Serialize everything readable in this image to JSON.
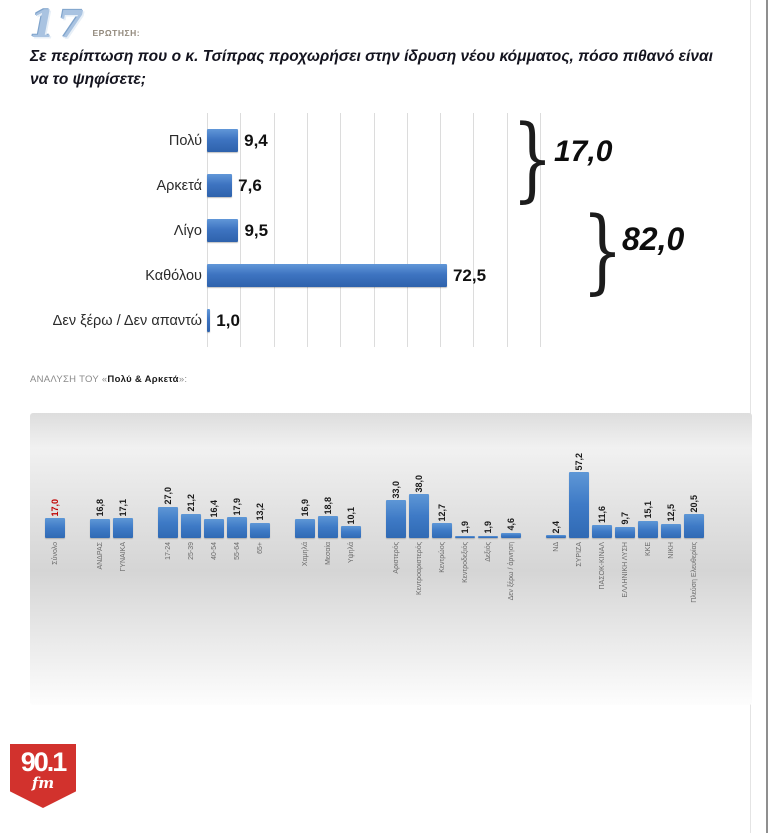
{
  "header": {
    "number": "17",
    "label": "ΕΡΩΤΗΣΗ:"
  },
  "question": "Σε περίπτωση που ο κ. Τσίπρας προχωρήσει στην ίδρυση νέου κόμματος, πόσο πιθανό είναι να το ψηφίσετε;",
  "analysis": {
    "prefix": "ΑΝΑΛΥΣΗ ΤΟΥ «",
    "highlight": "Πολύ & Αρκετά",
    "suffix": "»:"
  },
  "logo": {
    "frequency": "90.1",
    "band": "fm"
  },
  "colors": {
    "bar_blue": "#3e74c1",
    "highlight_red": "#c00000",
    "logo_red": "#d2322d",
    "header_number_blue": "#a9c3e1"
  },
  "chart_data": [
    {
      "type": "bar",
      "orientation": "horizontal",
      "categories": [
        "Πολύ",
        "Αρκετά",
        "Λίγο",
        "Καθόλου",
        "Δεν ξέρω / Δεν απαντώ"
      ],
      "values": [
        9.4,
        7.6,
        9.5,
        72.5,
        1.0
      ],
      "value_labels": [
        "9,4",
        "7,6",
        "9,5",
        "72,5",
        "1,0"
      ],
      "xlim": [
        0,
        100
      ],
      "grid": true,
      "legend": false,
      "bar_color": "#3e74c1",
      "annotations": [
        {
          "label": "17,0",
          "value": 17.0,
          "applies_to": [
            "Πολύ",
            "Αρκετά"
          ]
        },
        {
          "label": "82,0",
          "value": 82.0,
          "applies_to": [
            "Λίγο",
            "Καθόλου"
          ]
        }
      ]
    },
    {
      "type": "bar",
      "orientation": "vertical",
      "title": "ΑΝΑΛΥΣΗ ΤΟΥ «Πολύ & Αρκετά»:",
      "ylim": [
        0,
        60
      ],
      "grid": false,
      "legend": false,
      "bar_color": "#3e7ac6",
      "groups": [
        {
          "name": "total",
          "bars": [
            {
              "label": "Σύνολο",
              "value": 17.0,
              "value_label": "17,0",
              "highlight": true
            }
          ]
        },
        {
          "name": "gender",
          "bars": [
            {
              "label": "ΑΝΔΡΑΣ",
              "value": 16.8,
              "value_label": "16,8"
            },
            {
              "label": "ΓΥΝΑΙΚΑ",
              "value": 17.1,
              "value_label": "17,1"
            }
          ]
        },
        {
          "name": "age",
          "bars": [
            {
              "label": "17-24",
              "value": 27.0,
              "value_label": "27,0"
            },
            {
              "label": "25-39",
              "value": 21.2,
              "value_label": "21,2"
            },
            {
              "label": "40-54",
              "value": 16.4,
              "value_label": "16,4"
            },
            {
              "label": "55-64",
              "value": 17.9,
              "value_label": "17,9"
            },
            {
              "label": "65+",
              "value": 13.2,
              "value_label": "13,2"
            }
          ]
        },
        {
          "name": "class",
          "bars": [
            {
              "label": "Χαμηλά",
              "value": 16.9,
              "value_label": "16,9"
            },
            {
              "label": "Μεσαία",
              "value": 18.8,
              "value_label": "18,8"
            },
            {
              "label": "Υψηλά",
              "value": 10.1,
              "value_label": "10,1"
            }
          ]
        },
        {
          "name": "ideology",
          "bars": [
            {
              "label": "Αριστερός",
              "value": 33.0,
              "value_label": "33,0"
            },
            {
              "label": "Κεντροαριστερός",
              "value": 38.0,
              "value_label": "38,0"
            },
            {
              "label": "Κεντρώος",
              "value": 12.7,
              "value_label": "12,7"
            },
            {
              "label": "Κεντροδεξιός",
              "value": 1.9,
              "value_label": "1,9"
            },
            {
              "label": "Δεξιός",
              "value": 1.9,
              "value_label": "1,9"
            },
            {
              "label": "Δεν ξέρω / άρνηση",
              "value": 4.6,
              "value_label": "4,6"
            }
          ]
        },
        {
          "name": "party_vote",
          "bars": [
            {
              "label": "ΝΔ",
              "value": 2.4,
              "value_label": "2,4"
            },
            {
              "label": "ΣΥΡΙΖΑ",
              "value": 57.2,
              "value_label": "57,2"
            },
            {
              "label": "ΠΑΣΟΚ-ΚΙΝΑΛ",
              "value": 11.6,
              "value_label": "11,6"
            },
            {
              "label": "ΕΛΛΗΝΙΚΗ ΛΥΣΗ",
              "value": 9.7,
              "value_label": "9,7"
            },
            {
              "label": "ΚΚΕ",
              "value": 15.1,
              "value_label": "15,1"
            },
            {
              "label": "ΝΙΚΗ",
              "value": 12.5,
              "value_label": "12,5"
            },
            {
              "label": "Πλεύση Ελευθερίας",
              "value": 20.5,
              "value_label": "20,5"
            }
          ]
        }
      ]
    }
  ]
}
